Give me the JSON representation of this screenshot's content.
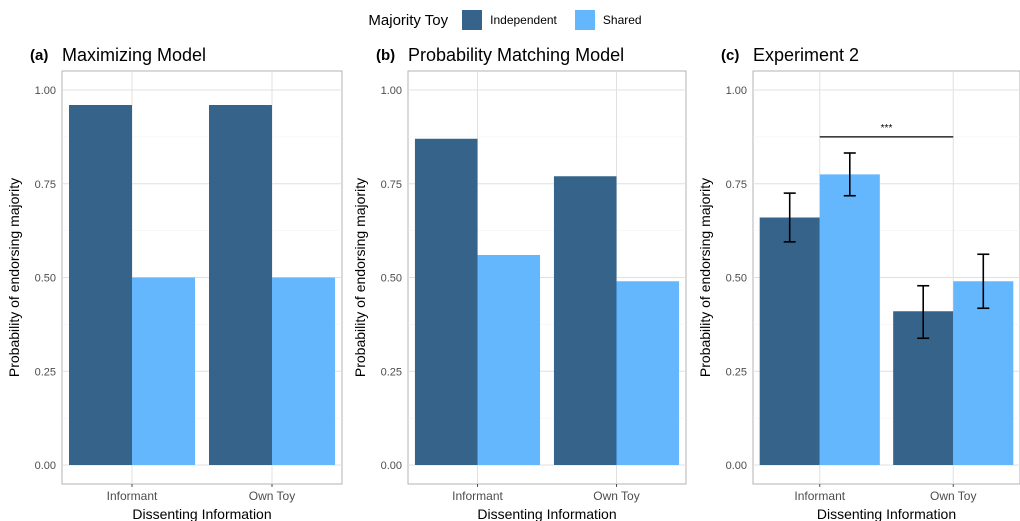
{
  "legend": {
    "title": "Majority Toy",
    "items": [
      {
        "label": "Independent",
        "color": "#35638A"
      },
      {
        "label": "Shared",
        "color": "#64B6FD"
      }
    ]
  },
  "chart_data": [
    {
      "type": "bar",
      "tag": "(a)",
      "title": "Maximizing Model",
      "xlabel": "Dissenting Information",
      "ylabel": "Probability of endorsing majority",
      "ylim": [
        0,
        1
      ],
      "yticks": [
        "0.00",
        "0.25",
        "0.50",
        "0.75",
        "1.00"
      ],
      "categories": [
        "Informant",
        "Own Toy"
      ],
      "series": [
        {
          "name": "Independent",
          "values": [
            0.96,
            0.96
          ]
        },
        {
          "name": "Shared",
          "values": [
            0.5,
            0.5
          ]
        }
      ],
      "grid": true
    },
    {
      "type": "bar",
      "tag": "(b)",
      "title": "Probability Matching Model",
      "xlabel": "Dissenting Information",
      "ylabel": "Probability of endorsing majority",
      "ylim": [
        0,
        1
      ],
      "yticks": [
        "0.00",
        "0.25",
        "0.50",
        "0.75",
        "1.00"
      ],
      "categories": [
        "Informant",
        "Own Toy"
      ],
      "series": [
        {
          "name": "Independent",
          "values": [
            0.87,
            0.77
          ]
        },
        {
          "name": "Shared",
          "values": [
            0.56,
            0.49
          ]
        }
      ],
      "grid": true
    },
    {
      "type": "bar",
      "tag": "(c)",
      "title": "Experiment 2",
      "xlabel": "Dissenting Information",
      "ylabel": "Probability of endorsing majority",
      "ylim": [
        0,
        1
      ],
      "yticks": [
        "0.00",
        "0.25",
        "0.50",
        "0.75",
        "1.00"
      ],
      "categories": [
        "Informant",
        "Own Toy"
      ],
      "series": [
        {
          "name": "Independent",
          "values": [
            0.66,
            0.41
          ],
          "err_low": [
            0.595,
            0.338
          ],
          "err_high": [
            0.725,
            0.478
          ]
        },
        {
          "name": "Shared",
          "values": [
            0.775,
            0.49
          ],
          "err_low": [
            0.718,
            0.418
          ],
          "err_high": [
            0.832,
            0.562
          ]
        }
      ],
      "significance": {
        "label": "***",
        "y": 0.875,
        "from_category": 0,
        "to_category": 1
      },
      "grid": true
    }
  ]
}
